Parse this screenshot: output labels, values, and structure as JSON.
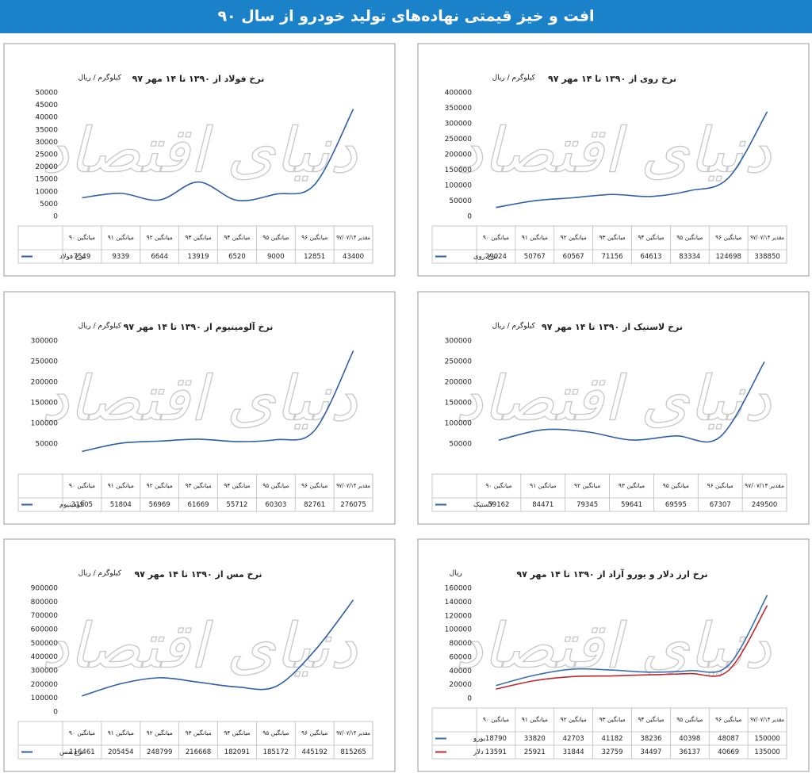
{
  "header": {
    "title": "افت و خیز قیمتی نهاده‌های تولید خودرو از سال ۹۰"
  },
  "watermark": "دنیای اقتصاد",
  "chart_data": [
    {
      "type": "line",
      "title": "نرخ فولاد از ۱۳۹۰ تا ۱۴ مهر ۹۷",
      "ylabel": "کیلوگرم / ریال",
      "categories": [
        "میانگین ۹۰",
        "میانگین ۹۱",
        "میانگین ۹۲",
        "میانگین ۹۳",
        "میانگین ۹۴",
        "میانگین ۹۵",
        "میانگین ۹۶",
        "مقدیر ۹۷/۰۷/۱۴"
      ],
      "series": [
        {
          "name": "نرخ فولاد",
          "color": "#2e5fa8",
          "values": [
            7549,
            9339,
            6644,
            13919,
            6520,
            9000,
            12851,
            43400
          ]
        }
      ],
      "ylim": [
        0,
        50000
      ],
      "yticks": [
        0,
        5000,
        10000,
        15000,
        20000,
        25000,
        30000,
        35000,
        40000,
        45000,
        50000
      ]
    },
    {
      "type": "line",
      "title": "نرخ روی از ۱۳۹۰ تا ۱۴ مهر ۹۷",
      "ylabel": "کیلوگرم / ریال",
      "categories": [
        "میانگین ۹۰",
        "میانگین ۹۱",
        "میانگین ۹۲",
        "میانگین ۹۳",
        "میانگین ۹۴",
        "میانگین ۹۵",
        "میانگین ۹۶",
        "مقدیر ۹۷/۰۷/۱۴"
      ],
      "series": [
        {
          "name": "نرخ روی",
          "color": "#2e5fa8",
          "values": [
            29024,
            50767,
            60567,
            71156,
            64613,
            83334,
            124698,
            338850
          ]
        }
      ],
      "ylim": [
        0,
        400000
      ],
      "yticks": [
        0,
        50000,
        100000,
        150000,
        200000,
        250000,
        300000,
        350000,
        400000
      ]
    },
    {
      "type": "line",
      "title": "نرخ آلومینیوم از ۱۳۹۰ تا ۱۴ مهر ۹۷",
      "ylabel": "کیلوگرم / ریال",
      "categories": [
        "میانگین ۹۰",
        "میانگین ۹۱",
        "میانگین ۹۲",
        "میانگین ۹۳",
        "میانگین ۹۴",
        "میانگین ۹۵",
        "میانگین ۹۶",
        "مقدیر ۹۷/۰۷/۱۴"
      ],
      "series": [
        {
          "name": "آلومینیوم",
          "color": "#2e5fa8",
          "values": [
            31905,
            51804,
            56969,
            61669,
            55712,
            60303,
            82761,
            276075
          ]
        }
      ],
      "ylim": [
        0,
        300000
      ],
      "yticks": [
        50000,
        100000,
        150000,
        200000,
        250000,
        300000
      ]
    },
    {
      "type": "line",
      "title": "نرخ لاستیک از ۱۳۹۰ تا ۱۴ مهر ۹۷",
      "ylabel": "کیلوگرم / ریال",
      "categories": [
        "میانگین ۹۰",
        "میانگین ۹۱",
        "میانگین ۹۲",
        "میانگین ۹۳",
        "میانگین ۹۵",
        "میانگین ۹۶",
        "مقدیر ۹۷/۰۷/۱۴"
      ],
      "series": [
        {
          "name": "لاستیک",
          "color": "#2e5fa8",
          "values": [
            59162,
            84471,
            79345,
            59641,
            69595,
            67307,
            249500
          ]
        }
      ],
      "ylim": [
        0,
        300000
      ],
      "yticks": [
        50000,
        100000,
        150000,
        200000,
        250000,
        300000
      ]
    },
    {
      "type": "line",
      "title": "نرخ مس از ۱۳۹۰ تا ۱۴ مهر ۹۷",
      "ylabel": "کیلوگرم / ریال",
      "categories": [
        "میانگین ۹۰",
        "میانگین ۹۱",
        "میانگین ۹۲",
        "میانگین ۹۳",
        "میانگین ۹۴",
        "میانگین ۹۵",
        "میانگین ۹۶",
        "مقدیر ۹۷/۰۷/۱۴"
      ],
      "series": [
        {
          "name": "نرخ مس",
          "color": "#2e5fa8",
          "values": [
            116461,
            205454,
            248799,
            216668,
            182091,
            185172,
            445192,
            815265
          ]
        }
      ],
      "ylim": [
        0,
        900000
      ],
      "yticks": [
        0,
        100000,
        200000,
        300000,
        400000,
        500000,
        600000,
        700000,
        800000,
        900000
      ]
    },
    {
      "type": "line",
      "title": "نرخ ارز دلار و یورو آزاد از ۱۳۹۰ تا ۱۴ مهر ۹۷",
      "ylabel": "ریال",
      "categories": [
        "میانگین ۹۰",
        "میانگین ۹۱",
        "میانگین ۹۲",
        "میانگین ۹۳",
        "میانگین ۹۴",
        "میانگین ۹۵",
        "میانگین ۹۶",
        "مقدیر ۹۷/۰۷/۱۴"
      ],
      "series": [
        {
          "name": "یورو",
          "color": "#3a6fb0",
          "values": [
            18790,
            33820,
            42703,
            41182,
            38236,
            40398,
            48087,
            150000
          ]
        },
        {
          "name": "دلار",
          "color": "#c0282d",
          "values": [
            13591,
            25921,
            31844,
            32759,
            34497,
            36137,
            40669,
            135000
          ]
        }
      ],
      "ylim": [
        0,
        160000
      ],
      "yticks": [
        0,
        20000,
        40000,
        60000,
        80000,
        100000,
        120000,
        140000,
        160000
      ]
    }
  ]
}
